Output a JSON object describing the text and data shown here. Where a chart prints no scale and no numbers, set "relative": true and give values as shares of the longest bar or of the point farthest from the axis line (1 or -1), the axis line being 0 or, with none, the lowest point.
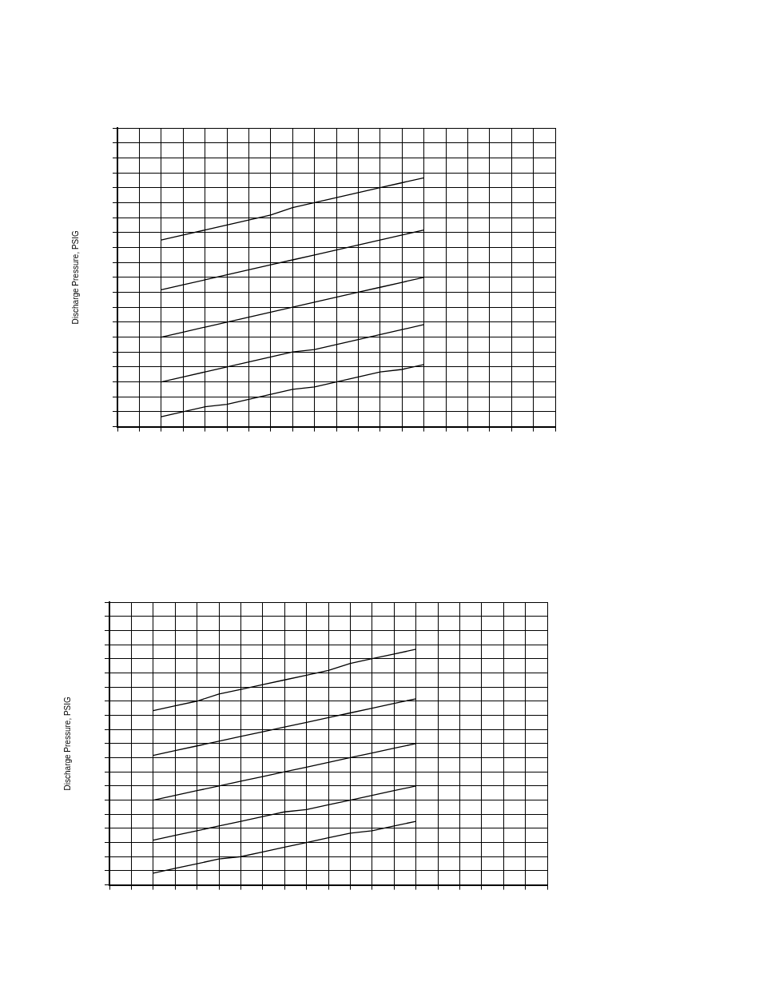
{
  "chart_data": [
    {
      "type": "line",
      "ylabel": "Discharge Pressure, PSIG",
      "relative": true,
      "grid": true,
      "marker": "none",
      "categories": [
        null,
        null,
        null,
        null,
        null,
        null,
        null,
        null,
        null,
        null,
        null,
        null,
        null,
        null,
        null,
        null,
        null,
        null,
        null,
        null,
        null
      ],
      "series": [
        {
          "color": "#000000",
          "values": [
            null,
            null,
            0.75,
            0.77,
            0.79,
            0.81,
            0.83,
            0.85,
            0.88,
            0.9,
            0.92,
            0.94,
            0.96,
            0.98,
            1.0,
            null,
            null,
            null,
            null,
            null,
            null
          ]
        },
        {
          "color": "#000000",
          "values": [
            null,
            null,
            0.55,
            0.57,
            0.59,
            0.61,
            0.63,
            0.65,
            0.67,
            0.69,
            0.71,
            0.73,
            0.75,
            0.77,
            0.79,
            null,
            null,
            null,
            null,
            null,
            null
          ]
        },
        {
          "color": "#000000",
          "values": [
            null,
            null,
            0.36,
            0.38,
            0.4,
            0.42,
            0.44,
            0.46,
            0.48,
            0.5,
            0.52,
            0.54,
            0.56,
            0.58,
            0.6,
            null,
            null,
            null,
            null,
            null,
            null
          ]
        },
        {
          "color": "#000000",
          "values": [
            null,
            null,
            0.18,
            0.2,
            0.22,
            0.24,
            0.26,
            0.28,
            0.3,
            0.31,
            0.33,
            0.35,
            0.37,
            0.39,
            0.41,
            null,
            null,
            null,
            null,
            null,
            null
          ]
        },
        {
          "color": "#000000",
          "values": [
            null,
            null,
            0.04,
            0.06,
            0.08,
            0.09,
            0.11,
            0.13,
            0.15,
            0.16,
            0.18,
            0.2,
            0.22,
            0.23,
            0.25,
            null,
            null,
            null,
            null,
            null,
            null
          ]
        }
      ]
    },
    {
      "type": "line",
      "ylabel": "Discharge Pressure, PSIG",
      "relative": true,
      "grid": true,
      "marker": "none",
      "categories": [
        null,
        null,
        null,
        null,
        null,
        null,
        null,
        null,
        null,
        null,
        null,
        null,
        null,
        null,
        null,
        null,
        null,
        null,
        null,
        null,
        null
      ],
      "series": [
        {
          "color": "#000000",
          "values": [
            null,
            null,
            0.74,
            0.76,
            0.78,
            0.81,
            0.83,
            0.85,
            0.87,
            0.89,
            0.91,
            0.94,
            0.96,
            0.98,
            1.0,
            null,
            null,
            null,
            null,
            null,
            null
          ]
        },
        {
          "color": "#000000",
          "values": [
            null,
            null,
            0.55,
            0.57,
            0.59,
            0.61,
            0.63,
            0.65,
            0.67,
            0.69,
            0.71,
            0.73,
            0.75,
            0.77,
            0.79,
            null,
            null,
            null,
            null,
            null,
            null
          ]
        },
        {
          "color": "#000000",
          "values": [
            null,
            null,
            0.36,
            0.38,
            0.4,
            0.42,
            0.44,
            0.46,
            0.48,
            0.5,
            0.52,
            0.54,
            0.56,
            0.58,
            0.6,
            null,
            null,
            null,
            null,
            null,
            null
          ]
        },
        {
          "color": "#000000",
          "values": [
            null,
            null,
            0.19,
            0.21,
            0.23,
            0.25,
            0.27,
            0.29,
            0.31,
            0.32,
            0.34,
            0.36,
            0.38,
            0.4,
            0.42,
            null,
            null,
            null,
            null,
            null,
            null
          ]
        },
        {
          "color": "#000000",
          "values": [
            null,
            null,
            0.05,
            0.07,
            0.09,
            0.11,
            0.12,
            0.14,
            0.16,
            0.18,
            0.2,
            0.22,
            0.23,
            0.25,
            0.27,
            null,
            null,
            null,
            null,
            null,
            null
          ]
        }
      ]
    }
  ]
}
